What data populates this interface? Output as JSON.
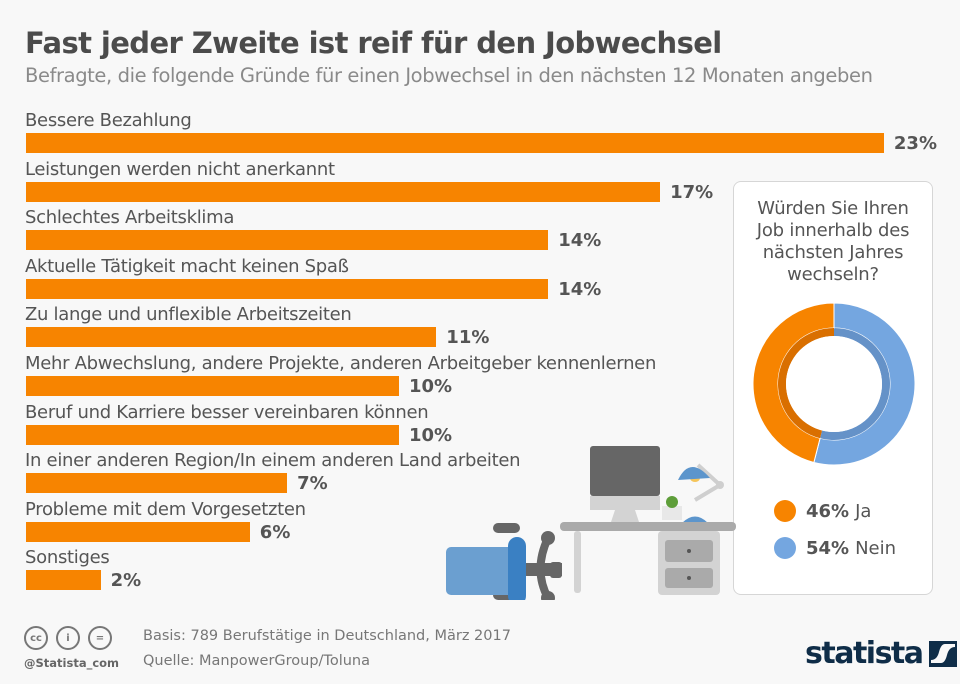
{
  "header": {
    "title": "Fast jeder Zweite ist reif für den Jobwechsel",
    "subtitle": "Befragte, die folgende Gründe für einen Jobwechsel in den nächsten 12 Monaten angeben"
  },
  "colors": {
    "bar": "#f78400",
    "ja": "#f78400",
    "nein": "#74a6e0",
    "brand": "#0f2d48"
  },
  "chart_data": [
    {
      "type": "bar",
      "orientation": "horizontal",
      "title": "Fast jeder Zweite ist reif für den Jobwechsel",
      "subtitle": "Befragte, die folgende Gründe für einen Jobwechsel in den nächsten 12 Monaten angeben",
      "xlabel": "",
      "ylabel": "",
      "unit": "%",
      "categories": [
        "Bessere Bezahlung",
        "Leistungen werden nicht anerkannt",
        "Schlechtes Arbeitsklima",
        "Aktuelle Tätigkeit macht keinen Spaß",
        "Zu lange und unflexible Arbeitszeiten",
        "Mehr Abwechslung, andere Projekte, anderen Arbeitgeber kennenlernen",
        "Beruf und Karriere besser vereinbaren können",
        "In einer anderen Region/In einem anderen Land arbeiten",
        "Probleme mit dem Vorgesetzten",
        "Sonstiges"
      ],
      "values": [
        23,
        17,
        14,
        14,
        11,
        10,
        10,
        7,
        6,
        2
      ],
      "value_labels": [
        "23%",
        "17%",
        "14%",
        "14%",
        "11%",
        "10%",
        "10%",
        "7%",
        "6%",
        "2%"
      ],
      "xlim": [
        0,
        23
      ],
      "grid": false
    },
    {
      "type": "pie",
      "donut": true,
      "title": "Würden Sie Ihren Job innerhalb des nächsten Jahres wechseln?",
      "categories": [
        "Ja",
        "Nein"
      ],
      "values": [
        46,
        54
      ],
      "value_labels": [
        "46%",
        "54%"
      ],
      "legend": "bottom"
    }
  ],
  "panel": {
    "question": [
      "Würden Sie Ihren",
      "Job innerhalb des",
      "nächsten Jahres",
      "wechseln?"
    ]
  },
  "footer": {
    "license_icons": [
      "cc-icon",
      "by-icon",
      "nd-icon"
    ],
    "license_glyphs": [
      "cc",
      "i",
      "="
    ],
    "handle": "@Statista_com",
    "basis": "Basis: 789 Berufstätige in Deutschland, März 2017",
    "source": "Quelle: ManpowerGroup/Toluna",
    "logo": "statista"
  }
}
